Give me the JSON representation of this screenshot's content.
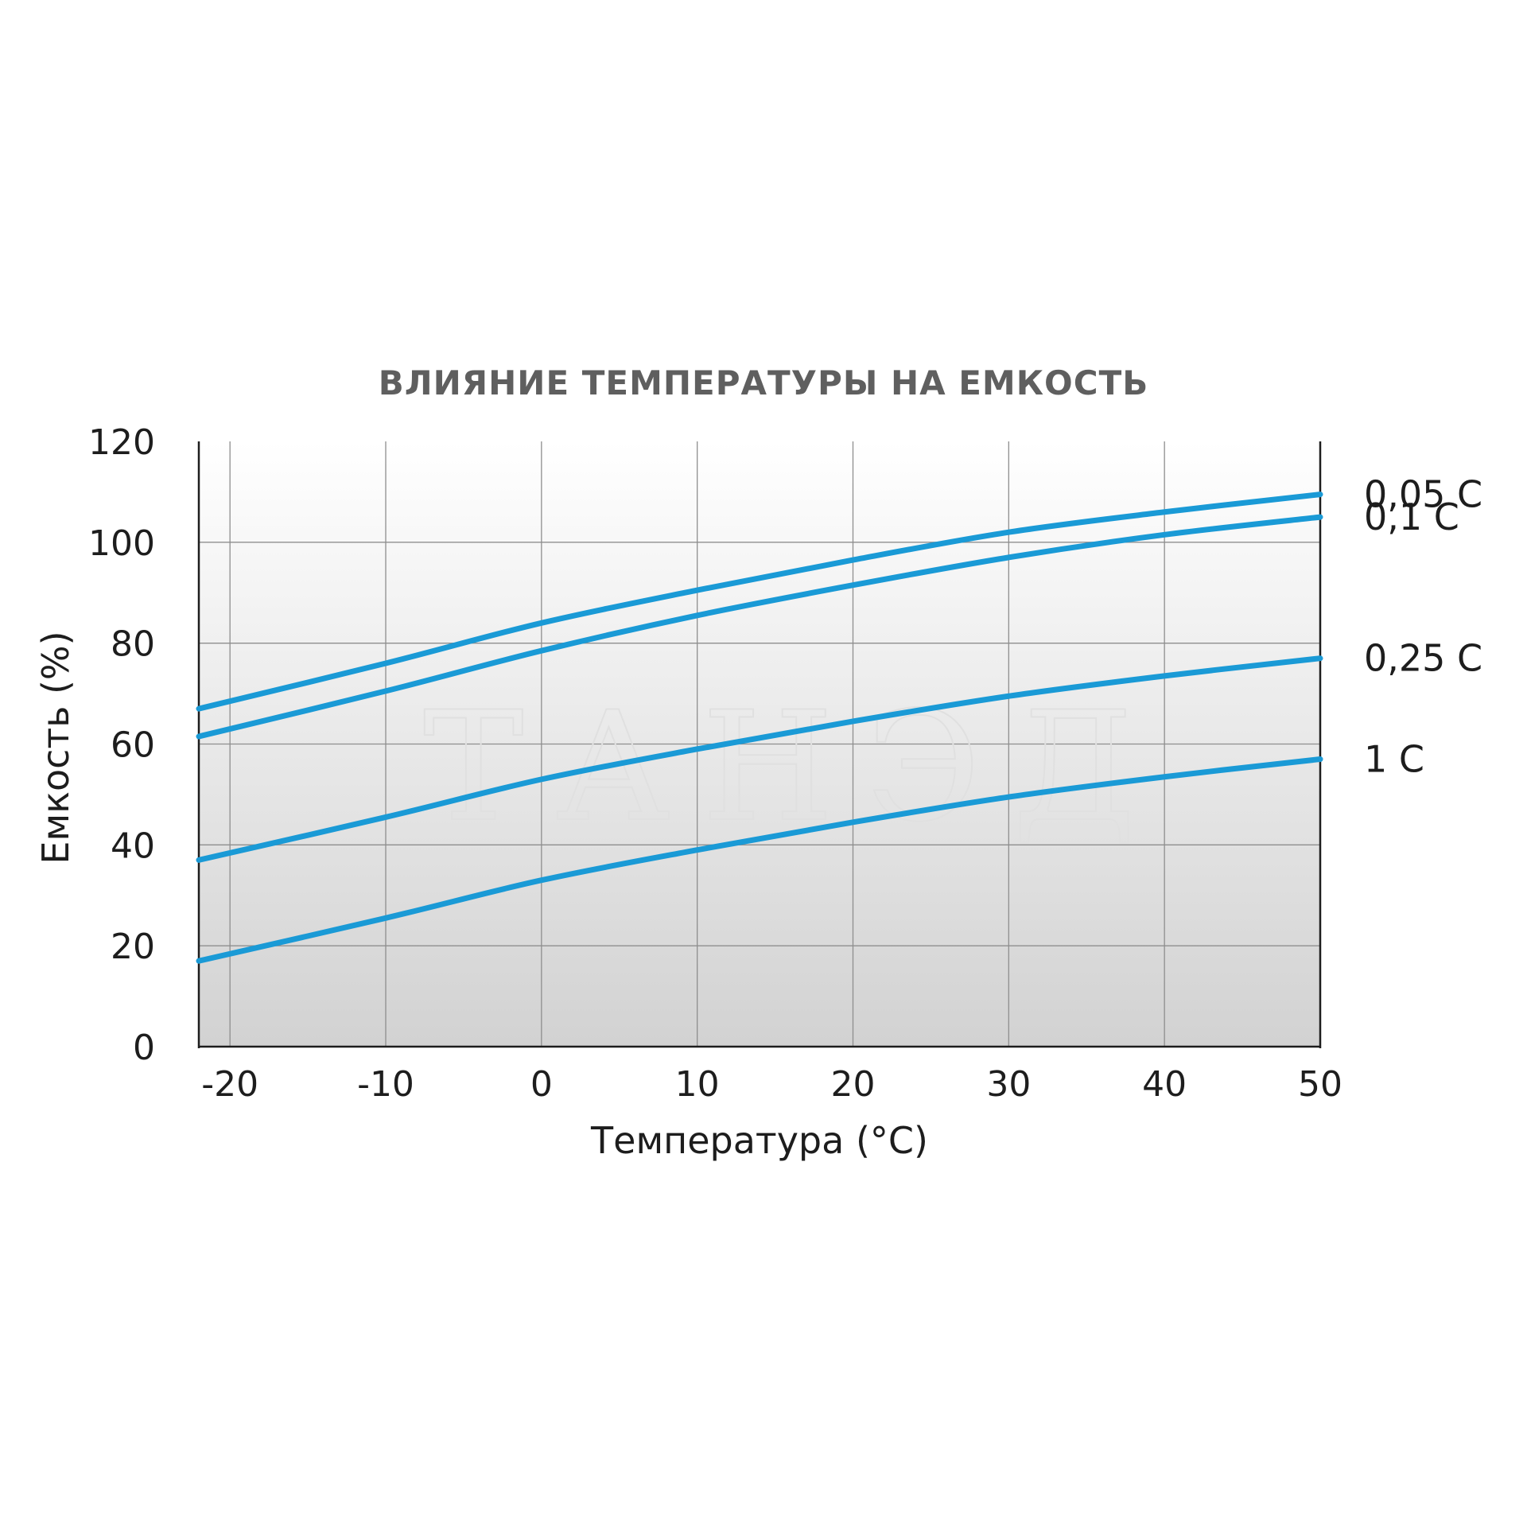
{
  "chart_data": {
    "type": "line",
    "title": "ВЛИЯНИЕ ТЕМПЕРАТУРЫ НА ЕМКОСТЬ",
    "xlabel": "Температура (°С)",
    "ylabel": "Емкость (%)",
    "xlim": [
      -22,
      50
    ],
    "ylim": [
      0,
      120
    ],
    "x_ticks": [
      "-20",
      "-10",
      "0",
      "10",
      "20",
      "30",
      "40",
      "50"
    ],
    "y_ticks": [
      "0",
      "20",
      "40",
      "60",
      "80",
      "100",
      "120"
    ],
    "grid": true,
    "line_color": "#1a9ad6",
    "watermark": "ТАНЭД",
    "series": [
      {
        "name": "0,05 С",
        "x": [
          -22,
          -10,
          0,
          10,
          20,
          30,
          40,
          50
        ],
        "values": [
          67,
          76,
          84,
          90.5,
          96.5,
          102,
          106,
          109.5
        ]
      },
      {
        "name": "0,1 С",
        "x": [
          -22,
          -10,
          0,
          10,
          20,
          30,
          40,
          50
        ],
        "values": [
          61.5,
          70.5,
          78.5,
          85.5,
          91.5,
          97,
          101.5,
          105
        ]
      },
      {
        "name": "0,25 С",
        "x": [
          -22,
          -10,
          0,
          10,
          20,
          30,
          40,
          50
        ],
        "values": [
          37,
          45.5,
          53,
          59,
          64.5,
          69.5,
          73.5,
          77
        ]
      },
      {
        "name": "1 С",
        "x": [
          -22,
          -10,
          0,
          10,
          20,
          30,
          40,
          50
        ],
        "values": [
          17,
          25.5,
          33,
          39,
          44.5,
          49.5,
          53.5,
          57
        ]
      }
    ]
  }
}
